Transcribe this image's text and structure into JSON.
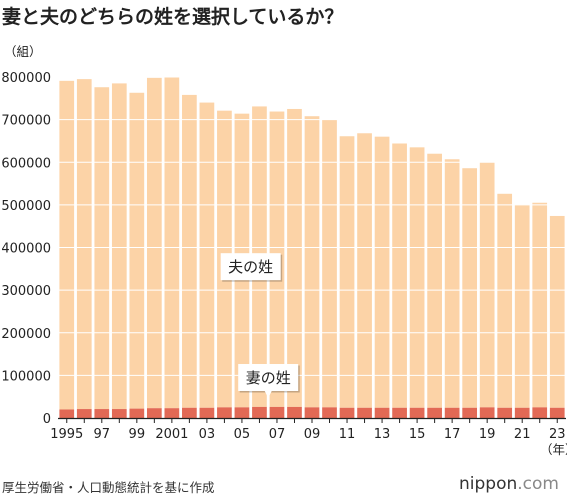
{
  "title": "妻と夫のどちらの姓を選択しているか？",
  "source": "厚生労働省・人口動態統計を基に作成",
  "brand": {
    "name": "nippon",
    "tld": ".com"
  },
  "colors": {
    "husband": "#fcd3a7",
    "wife": "#e26955",
    "axis": "#222222",
    "grid": "#ffffff"
  },
  "chart_data": {
    "type": "bar",
    "stacked": true,
    "title": "妻と夫のどちらの姓を選択しているか？",
    "ylabel": "（組）",
    "xunit": "（年）",
    "ylim": [
      0,
      800000
    ],
    "yticks": [
      0,
      100000,
      200000,
      300000,
      400000,
      500000,
      600000,
      700000,
      800000
    ],
    "ytick_labels": [
      "0",
      "100000",
      "200000",
      "300000",
      "400000",
      "500000",
      "600000",
      "700000",
      "800000"
    ],
    "categories": [
      "1995",
      "1996",
      "1997",
      "1998",
      "1999",
      "2000",
      "2001",
      "2002",
      "2003",
      "2004",
      "2005",
      "2006",
      "2007",
      "2008",
      "2009",
      "2010",
      "2011",
      "2012",
      "2013",
      "2014",
      "2015",
      "2016",
      "2017",
      "2018",
      "2019",
      "2020",
      "2021",
      "2022",
      "2023"
    ],
    "xtick_labels": [
      "1995",
      "",
      "97",
      "",
      "99",
      "",
      "2001",
      "",
      "03",
      "",
      "05",
      "",
      "07",
      "",
      "09",
      "",
      "11",
      "",
      "13",
      "",
      "15",
      "",
      "17",
      "",
      "19",
      "",
      "21",
      "",
      "23"
    ],
    "series": [
      {
        "name": "妻の姓",
        "values": [
          20000,
          21000,
          21000,
          21000,
          22000,
          23000,
          23000,
          24000,
          24000,
          25000,
          25000,
          26000,
          26000,
          26000,
          25000,
          25000,
          24000,
          24000,
          24000,
          24000,
          24000,
          24000,
          24000,
          24000,
          25000,
          24000,
          24000,
          25000,
          24000
        ]
      },
      {
        "name": "夫の姓",
        "values": [
          771000,
          774000,
          755000,
          764000,
          741000,
          775000,
          777000,
          734000,
          716000,
          696000,
          689000,
          705000,
          693000,
          699000,
          683000,
          675000,
          637000,
          644000,
          636000,
          620000,
          611000,
          596000,
          583000,
          562000,
          575000,
          502000,
          477000,
          480000,
          450000
        ]
      }
    ],
    "annotations": [
      {
        "text": "夫の姓",
        "series": "夫の姓",
        "category": "2005",
        "y": 355000
      },
      {
        "text": "妻の姓",
        "series": "妻の姓",
        "category": "2006",
        "y": 95000
      }
    ]
  }
}
